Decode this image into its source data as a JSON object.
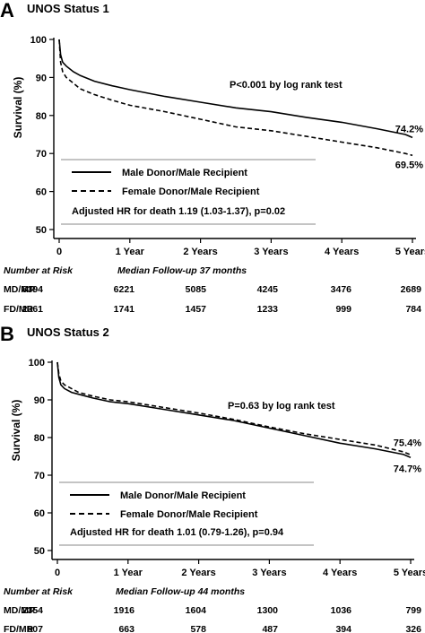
{
  "chart_data": [
    {
      "type": "line",
      "panel_letter": "A",
      "title": "UNOS Status 1",
      "xlabel": "",
      "ylabel": "Survival (%)",
      "xlim": [
        0,
        5
      ],
      "ylim": [
        50,
        100
      ],
      "x_tick_labels": [
        "0",
        "1 Year",
        "2 Years",
        "3 Years",
        "4 Years",
        "5 Years"
      ],
      "y_ticks": [
        50,
        60,
        70,
        80,
        90,
        100
      ],
      "grid": false,
      "legend": "bottom-left",
      "series": [
        {
          "name": "Male Donor/Male Recipient",
          "style": "solid",
          "x": [
            0,
            0.02,
            0.05,
            0.1,
            0.2,
            0.3,
            0.5,
            0.75,
            1,
            1.5,
            2,
            2.5,
            3,
            3.5,
            4,
            4.5,
            4.9,
            5
          ],
          "y": [
            100,
            96,
            94,
            93,
            91.5,
            90.5,
            89,
            87.8,
            86.8,
            85,
            83.5,
            82,
            81,
            79.5,
            78.2,
            76.5,
            75,
            74.2
          ],
          "end_label": "74.2%"
        },
        {
          "name": "Female Donor/Male Recipient",
          "style": "dashed",
          "x": [
            0,
            0.02,
            0.05,
            0.1,
            0.2,
            0.3,
            0.5,
            0.75,
            1,
            1.5,
            2,
            2.5,
            3,
            3.5,
            4,
            4.5,
            4.9,
            5
          ],
          "y": [
            100,
            94,
            91.5,
            90,
            88.5,
            87,
            85.5,
            84,
            82.7,
            81,
            79,
            77,
            76,
            74.5,
            73,
            71.5,
            70,
            69.5
          ],
          "end_label": "69.5%"
        }
      ],
      "annotations": [
        "P<0.001 by log rank test",
        "Adjusted HR for death 1.19 (1.03-1.37), p=0.02"
      ],
      "risk_table": {
        "header": "Number at Risk",
        "followup": "Median Follow-up 37 months",
        "rows": [
          {
            "label": "MD/MR",
            "values": [
              "8394",
              "6221",
              "5085",
              "4245",
              "3476",
              "2689"
            ]
          },
          {
            "label": "FD/MR",
            "values": [
              "2361",
              "1741",
              "1457",
              "1233",
              "999",
              "784"
            ]
          }
        ]
      }
    },
    {
      "type": "line",
      "panel_letter": "B",
      "title": "UNOS Status 2",
      "xlabel": "",
      "ylabel": "Survival (%)",
      "xlim": [
        0,
        5
      ],
      "ylim": [
        50,
        100
      ],
      "x_tick_labels": [
        "0",
        "1 Year",
        "2 Years",
        "3 Years",
        "4 Years",
        "5 Years"
      ],
      "y_ticks": [
        50,
        60,
        70,
        80,
        90,
        100
      ],
      "grid": false,
      "legend": "bottom-left",
      "series": [
        {
          "name": "Male Donor/Male Recipient",
          "style": "solid",
          "x": [
            0,
            0.02,
            0.05,
            0.1,
            0.2,
            0.3,
            0.5,
            0.75,
            1,
            1.5,
            2,
            2.5,
            3,
            3.5,
            4,
            4.5,
            4.9,
            5
          ],
          "y": [
            100,
            96,
            94,
            93,
            92,
            91.5,
            90.5,
            89.5,
            89,
            87.5,
            86,
            84.5,
            82.5,
            80.5,
            78.5,
            77,
            75.5,
            74.7
          ],
          "end_label": "74.7%"
        },
        {
          "name": "Female Donor/Male Recipient",
          "style": "dashed",
          "x": [
            0,
            0.02,
            0.05,
            0.1,
            0.2,
            0.3,
            0.5,
            0.75,
            1,
            1.5,
            2,
            2.5,
            3,
            3.5,
            4,
            4.5,
            4.9,
            5
          ],
          "y": [
            100,
            97,
            95,
            94,
            93,
            92,
            91,
            90,
            89.5,
            88,
            86.5,
            84.8,
            82.8,
            81,
            79.5,
            78,
            76.2,
            75.4
          ],
          "end_label": "75.4%"
        }
      ],
      "annotations": [
        "P=0.63 by log rank test",
        "Adjusted HR for death 1.01 (0.79-1.26), p=0.94"
      ],
      "risk_table": {
        "header": "Number at Risk",
        "followup": "Median Follow-up 44 months",
        "rows": [
          {
            "label": "MD/MR",
            "values": [
              "2354",
              "1916",
              "1604",
              "1300",
              "1036",
              "799"
            ]
          },
          {
            "label": "FD/MR",
            "values": [
              "807",
              "663",
              "578",
              "487",
              "394",
              "326"
            ]
          }
        ]
      }
    }
  ]
}
